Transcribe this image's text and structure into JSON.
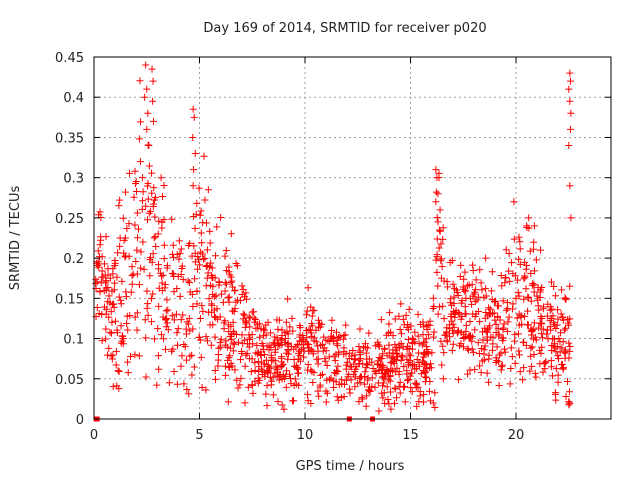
{
  "chart_data": {
    "type": "scatter",
    "title": "Day 169 of 2014, SRMTID for receiver p020",
    "xlabel": "GPS time / hours",
    "ylabel": "SRMTID / TECUs",
    "xlim": [
      0,
      24.5
    ],
    "ylim": [
      0,
      0.45
    ],
    "xticks": [
      0,
      5,
      10,
      15,
      20
    ],
    "yticks": [
      0,
      0.05,
      0.1,
      0.15,
      0.2,
      0.25,
      0.3,
      0.35,
      0.4,
      0.45
    ],
    "ytick_labels": [
      "0",
      "0.05",
      "0.1",
      "0.15",
      "0.2",
      "0.25",
      "0.3",
      "0.35",
      "0.4",
      "0.45"
    ],
    "grid": true,
    "marker": "plus",
    "color": "#ff0000",
    "envelope": {
      "t": [
        0.0,
        0.3,
        0.6,
        1.0,
        1.5,
        2.0,
        2.5,
        3.0,
        3.5,
        4.0,
        4.5,
        5.0,
        5.5,
        6.0,
        6.5,
        7.0,
        7.5,
        8.0,
        8.5,
        9.0,
        9.5,
        10.0,
        10.5,
        11.0,
        11.5,
        12.0,
        12.5,
        13.0,
        13.5,
        14.0,
        14.5,
        15.0,
        15.5,
        16.0,
        16.3,
        16.7,
        17.0,
        17.5,
        18.0,
        18.5,
        19.0,
        19.5,
        20.0,
        20.5,
        21.0,
        21.5,
        22.0,
        22.3,
        22.6
      ],
      "median": [
        0.17,
        0.2,
        0.14,
        0.14,
        0.17,
        0.23,
        0.25,
        0.19,
        0.16,
        0.14,
        0.12,
        0.19,
        0.16,
        0.14,
        0.12,
        0.11,
        0.085,
        0.07,
        0.075,
        0.08,
        0.085,
        0.09,
        0.09,
        0.08,
        0.075,
        0.07,
        0.065,
        0.06,
        0.065,
        0.07,
        0.075,
        0.075,
        0.07,
        0.075,
        0.22,
        0.12,
        0.12,
        0.13,
        0.13,
        0.12,
        0.11,
        0.12,
        0.16,
        0.15,
        0.13,
        0.11,
        0.09,
        0.1,
        0.12
      ],
      "spread": [
        0.03,
        0.04,
        0.04,
        0.05,
        0.06,
        0.08,
        0.09,
        0.07,
        0.05,
        0.05,
        0.05,
        0.07,
        0.05,
        0.05,
        0.04,
        0.04,
        0.03,
        0.025,
        0.025,
        0.03,
        0.03,
        0.03,
        0.03,
        0.03,
        0.03,
        0.025,
        0.025,
        0.025,
        0.025,
        0.03,
        0.03,
        0.03,
        0.025,
        0.03,
        0.08,
        0.04,
        0.035,
        0.035,
        0.035,
        0.03,
        0.03,
        0.035,
        0.05,
        0.045,
        0.04,
        0.035,
        0.03,
        0.04,
        0.1
      ]
    },
    "spikes": [
      {
        "t": 2.45,
        "y": 0.44
      },
      {
        "t": 2.5,
        "y": 0.41
      },
      {
        "t": 2.4,
        "y": 0.4
      },
      {
        "t": 2.55,
        "y": 0.38
      },
      {
        "t": 2.75,
        "y": 0.435
      },
      {
        "t": 2.8,
        "y": 0.42
      },
      {
        "t": 2.78,
        "y": 0.395
      },
      {
        "t": 2.82,
        "y": 0.37
      },
      {
        "t": 2.5,
        "y": 0.36
      },
      {
        "t": 2.6,
        "y": 0.34
      },
      {
        "t": 2.2,
        "y": 0.32
      },
      {
        "t": 2.3,
        "y": 0.3
      },
      {
        "t": 4.7,
        "y": 0.385
      },
      {
        "t": 4.75,
        "y": 0.375
      },
      {
        "t": 4.68,
        "y": 0.35
      },
      {
        "t": 4.8,
        "y": 0.33
      },
      {
        "t": 4.72,
        "y": 0.31
      },
      {
        "t": 4.7,
        "y": 0.29
      },
      {
        "t": 16.2,
        "y": 0.31
      },
      {
        "t": 16.25,
        "y": 0.3
      },
      {
        "t": 16.35,
        "y": 0.3
      },
      {
        "t": 16.3,
        "y": 0.28
      },
      {
        "t": 16.2,
        "y": 0.27
      },
      {
        "t": 16.4,
        "y": 0.26
      },
      {
        "t": 16.3,
        "y": 0.245
      },
      {
        "t": 22.55,
        "y": 0.43
      },
      {
        "t": 22.58,
        "y": 0.42
      },
      {
        "t": 22.5,
        "y": 0.41
      },
      {
        "t": 22.55,
        "y": 0.395
      },
      {
        "t": 22.6,
        "y": 0.38
      },
      {
        "t": 22.58,
        "y": 0.36
      },
      {
        "t": 22.5,
        "y": 0.34
      },
      {
        "t": 22.55,
        "y": 0.29
      },
      {
        "t": 22.6,
        "y": 0.25
      },
      {
        "t": 19.9,
        "y": 0.27
      },
      {
        "t": 20.6,
        "y": 0.25
      },
      {
        "t": 20.5,
        "y": 0.24
      },
      {
        "t": 13.5,
        "y": 0.01
      },
      {
        "t": 8.5,
        "y": 0.03
      }
    ],
    "zero_markers": [
      0.1,
      0.15,
      12.1,
      13.2
    ]
  }
}
